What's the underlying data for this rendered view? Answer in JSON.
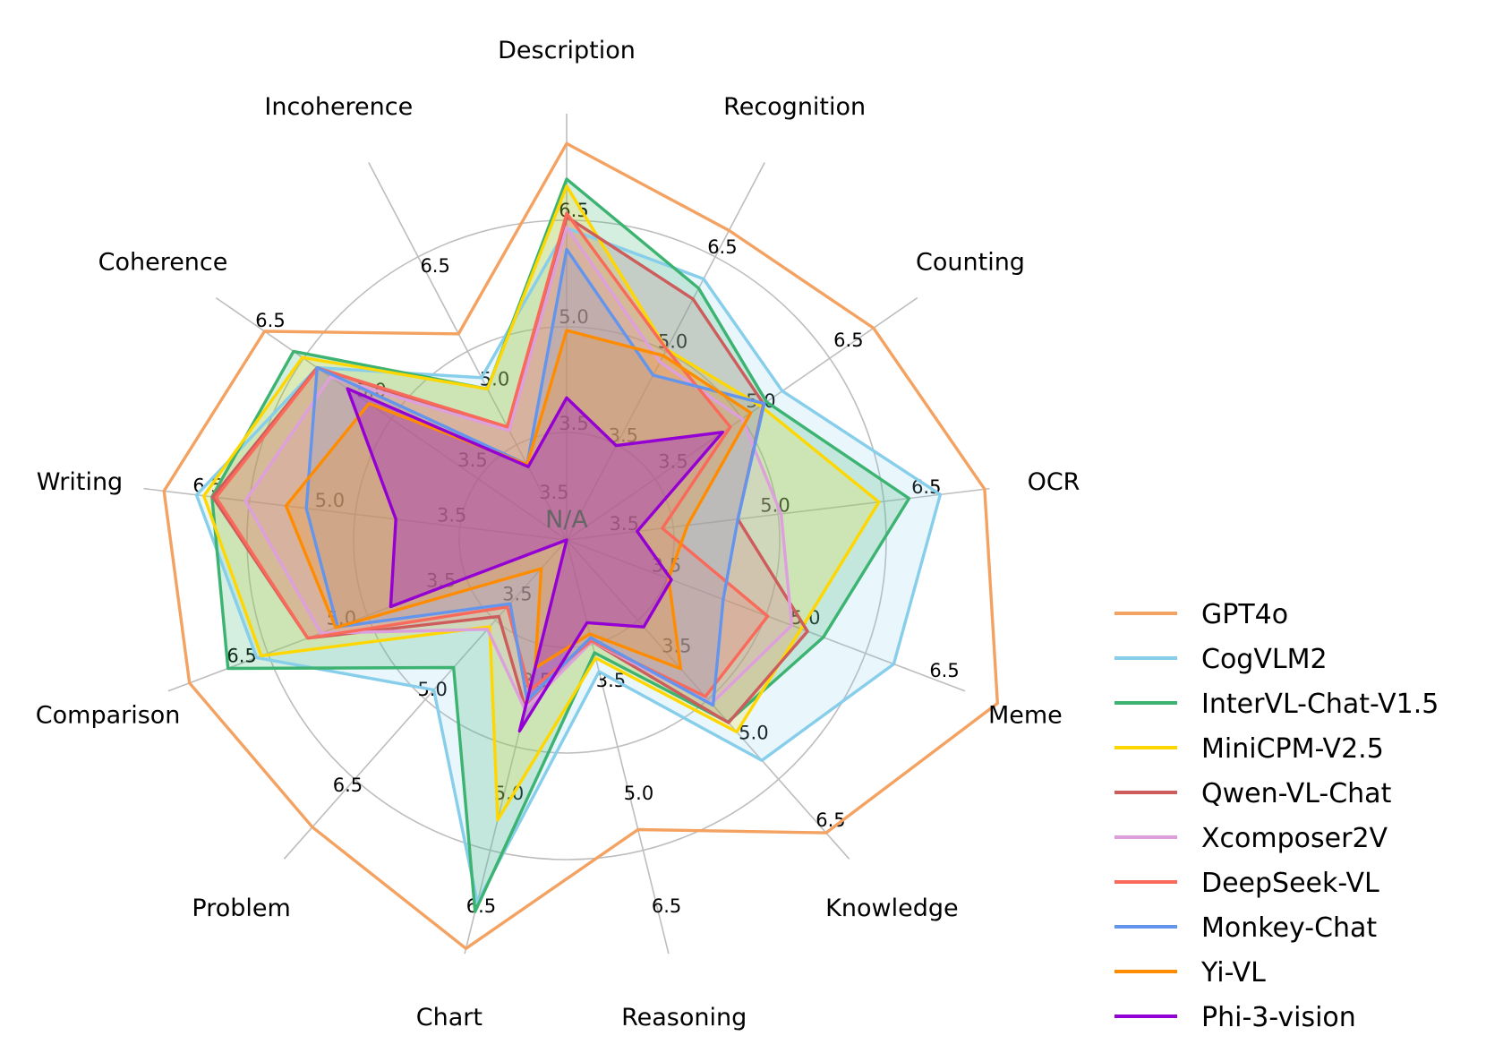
{
  "chart_data": {
    "type": "radar",
    "center_label": "N/A",
    "scale": {
      "min": 2.0,
      "max": 8.0
    },
    "rings": [
      3.5,
      5.0,
      6.5
    ],
    "ring_labels": [
      "3.5",
      "5.0",
      "6.5"
    ],
    "categories": [
      "Description",
      "Recognition",
      "Counting",
      "OCR",
      "Meme",
      "Knowledge",
      "Reasoning",
      "Chart",
      "Problem",
      "Comparison",
      "Writing",
      "Coherence",
      "Incoherence"
    ],
    "ranges": [
      [
        2.0,
        8.0
      ],
      [
        2.0,
        8.0
      ],
      [
        1.8,
        7.8
      ],
      [
        3.0,
        7.2
      ],
      [
        2.5,
        6.8
      ],
      [
        1.5,
        7.0
      ],
      [
        1.5,
        7.0
      ],
      [
        1.5,
        7.0
      ],
      [
        2.5,
        7.5
      ],
      [
        1.5,
        7.5
      ],
      [
        2.0,
        7.2
      ],
      [
        2.0,
        7.2
      ],
      [
        3.0,
        8.0
      ]
    ],
    "series": [
      {
        "name": "GPT4o",
        "color": "#f4a261",
        "fill": false,
        "values": [
          7.58,
          6.92,
          7.05,
          7.15,
          7.15,
          6.55,
          5.35,
          6.93,
          7.0,
          7.18,
          6.95,
          6.48,
          5.73
        ]
      },
      {
        "name": "CogVLM2",
        "color": "#87ceeb",
        "fill": true,
        "fill_opacity": 0.18,
        "values": [
          6.39,
          6.15,
          5.49,
          6.71,
          6.03,
          5.3,
          3.25,
          6.32,
          4.85,
          6.17,
          6.55,
          5.7,
          5.15
        ]
      },
      {
        "name": "InterVL-Chat-V1.5",
        "color": "#3cb371",
        "fill": true,
        "fill_opacity": 0.22,
        "values": [
          7.08,
          6.0,
          5.22,
          6.4,
          5.27,
          4.64,
          3.0,
          6.44,
          4.5,
          6.6,
          6.36,
          6.05,
          5.0
        ]
      },
      {
        "name": "MiniCPM-V2.5",
        "color": "#ffd700",
        "fill": true,
        "fill_opacity": 0.18,
        "values": [
          6.98,
          5.03,
          5.12,
          6.1,
          5.03,
          4.81,
          3.07,
          5.22,
          3.86,
          6.1,
          6.46,
          5.92,
          5.0
        ]
      },
      {
        "name": "Qwen-VL-Chat",
        "color": "#cd5c5c",
        "fill": true,
        "fill_opacity": 0.18,
        "values": [
          6.55,
          5.83,
          5.17,
          4.7,
          5.1,
          4.65,
          2.85,
          3.73,
          3.7,
          5.4,
          6.35,
          5.7,
          4.45
        ]
      },
      {
        "name": "Xcomposer2V",
        "color": "#dda0dd",
        "fill": true,
        "fill_opacity": 0.18,
        "values": [
          6.4,
          4.83,
          4.8,
          5.13,
          4.93,
          4.32,
          2.85,
          3.75,
          3.9,
          5.2,
          5.95,
          5.5,
          4.45
        ]
      },
      {
        "name": "DeepSeek-VL",
        "color": "#fa6a5a",
        "fill": true,
        "fill_opacity": 0.18,
        "values": [
          6.6,
          5.03,
          4.6,
          3.95,
          4.67,
          4.2,
          2.84,
          3.5,
          3.55,
          5.4,
          6.31,
          5.69,
          4.5
        ]
      },
      {
        "name": "Monkey-Chat",
        "color": "#6495ed",
        "fill": true,
        "fill_opacity": 0.18,
        "values": [
          6.09,
          4.62,
          5.18,
          4.7,
          4.19,
          4.35,
          2.8,
          3.63,
          3.5,
          4.95,
          5.2,
          5.7,
          4.0
        ]
      },
      {
        "name": "Yi-VL",
        "color": "#ff8c00",
        "fill": true,
        "fill_opacity": 0.22,
        "values": [
          4.95,
          4.93,
          4.95,
          4.2,
          3.6,
          3.72,
          2.75,
          3.2,
          2.95,
          4.98,
          5.45,
          4.93,
          4.0
        ]
      },
      {
        "name": "Phi-3-vision",
        "color": "#9400d3",
        "fill": true,
        "fill_opacity": 0.3,
        "values": [
          4.0,
          3.5,
          4.47,
          3.7,
          3.63,
          3.0,
          2.6,
          4.04,
          2.5,
          4.15,
          4.1,
          5.25,
          3.97
        ]
      }
    ],
    "legend_position": "bottom-right"
  }
}
